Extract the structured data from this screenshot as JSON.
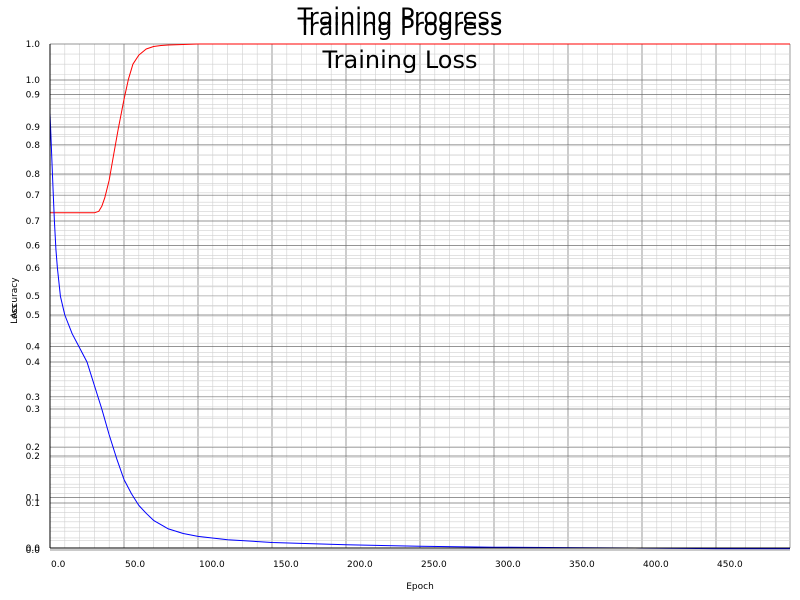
{
  "titles": {
    "title_1": "Training Progress",
    "title_2": "Training Progress",
    "title_3": "Training Loss"
  },
  "colors": {
    "accuracy": "#ff0000",
    "loss": "#0000ff",
    "background": "#ffffff"
  },
  "chart_data": [
    {
      "type": "line",
      "title": "Training Progress",
      "xlabel": "Epoch",
      "ylabel": "Accuracy",
      "xlim": [
        0,
        500
      ],
      "ylim": [
        0,
        1.0
      ],
      "grid": true,
      "x_ticks": [
        "0.0",
        "50.0",
        "100.0",
        "150.0",
        "200.0",
        "250.0",
        "300.0",
        "350.0",
        "400.0",
        "450.0"
      ],
      "y_ticks": [
        "0.0",
        "0.1",
        "0.2",
        "0.3",
        "0.4",
        "0.5",
        "0.6",
        "0.7",
        "0.8",
        "0.9",
        "1.0"
      ],
      "series": [
        {
          "color": "#ff0000",
          "x": [
            0,
            10,
            20,
            30,
            33,
            35,
            37,
            40,
            43,
            46,
            50,
            53,
            56,
            60,
            65,
            70,
            75,
            80,
            90,
            100,
            150,
            200,
            250,
            300,
            350,
            400,
            450,
            500
          ],
          "y": [
            0.665,
            0.665,
            0.665,
            0.665,
            0.668,
            0.678,
            0.695,
            0.73,
            0.78,
            0.83,
            0.89,
            0.93,
            0.96,
            0.978,
            0.99,
            0.995,
            0.997,
            0.998,
            0.999,
            1.0,
            1.0,
            1.0,
            1.0,
            1.0,
            1.0,
            1.0,
            1.0,
            1.0
          ]
        }
      ]
    },
    {
      "type": "line",
      "title": "Training Loss",
      "xlabel": "Epoch",
      "ylabel": "Loss",
      "xlim": [
        0,
        500
      ],
      "ylim": [
        0,
        1.0
      ],
      "grid": true,
      "y_ticks": [
        "0.0",
        "0.1",
        "0.2",
        "0.3",
        "0.4",
        "0.5",
        "0.6",
        "0.7",
        "0.8",
        "0.9",
        "1.0"
      ],
      "series": [
        {
          "color": "#0000ff",
          "x": [
            0,
            1,
            2,
            3,
            4,
            5,
            7,
            10,
            15,
            20,
            25,
            30,
            35,
            40,
            45,
            50,
            55,
            60,
            65,
            70,
            80,
            90,
            100,
            120,
            150,
            200,
            250,
            300,
            350,
            400,
            450,
            500
          ],
          "y": [
            0.93,
            0.85,
            0.77,
            0.7,
            0.64,
            0.6,
            0.54,
            0.5,
            0.46,
            0.43,
            0.4,
            0.35,
            0.3,
            0.245,
            0.195,
            0.15,
            0.12,
            0.095,
            0.078,
            0.063,
            0.045,
            0.035,
            0.029,
            0.022,
            0.016,
            0.011,
            0.008,
            0.006,
            0.005,
            0.004,
            0.003,
            0.003
          ]
        }
      ]
    }
  ]
}
